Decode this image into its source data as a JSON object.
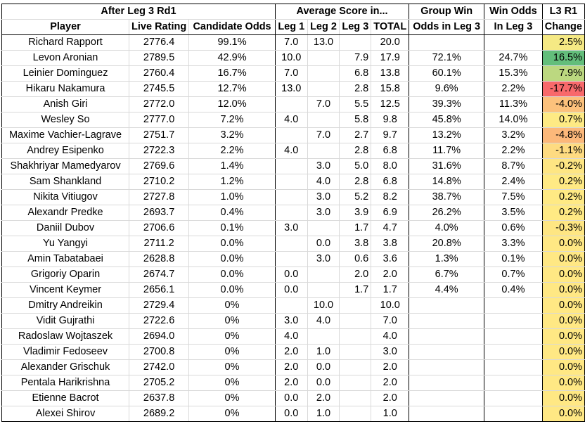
{
  "header": {
    "group1": "After Leg 3 Rd1",
    "avg": "Average Score in...",
    "group_win_1": "Group Win",
    "win_odds_1": "Win Odds",
    "l3r1": "L3 R1",
    "cols": [
      "Player",
      "Live Rating",
      "Candidate Odds",
      "Leg 1",
      "Leg 2",
      "Leg 3",
      "TOTAL",
      "Odds in Leg 3",
      "In Leg 3",
      "Change"
    ]
  },
  "rows": [
    {
      "player": "Richard Rapport",
      "rating": "2776.4",
      "cand": "99.1%",
      "leg1": "7.0",
      "leg2": "13.0",
      "leg3": "",
      "total": "20.0",
      "gwin": "",
      "wodds": "",
      "change": "2.5%",
      "bg": "#f5e984"
    },
    {
      "player": "Levon Aronian",
      "rating": "2789.5",
      "cand": "42.9%",
      "leg1": "10.0",
      "leg2": "",
      "leg3": "7.9",
      "total": "17.9",
      "gwin": "72.1%",
      "wodds": "24.7%",
      "change": "16.5%",
      "bg": "#63be7b"
    },
    {
      "player": "Leinier Dominguez",
      "rating": "2760.4",
      "cand": "16.7%",
      "leg1": "7.0",
      "leg2": "",
      "leg3": "6.8",
      "total": "13.8",
      "gwin": "60.1%",
      "wodds": "15.3%",
      "change": "7.9%",
      "bg": "#bcd880"
    },
    {
      "player": "Hikaru Nakamura",
      "rating": "2745.5",
      "cand": "12.7%",
      "leg1": "13.0",
      "leg2": "",
      "leg3": "2.8",
      "total": "15.8",
      "gwin": "9.6%",
      "wodds": "2.2%",
      "change": "-17.7%",
      "bg": "#f8696b"
    },
    {
      "player": "Anish Giri",
      "rating": "2772.0",
      "cand": "12.0%",
      "leg1": "",
      "leg2": "7.0",
      "leg3": "5.5",
      "total": "12.5",
      "gwin": "39.3%",
      "wodds": "11.3%",
      "change": "-4.0%",
      "bg": "#fcc17c"
    },
    {
      "player": "Wesley So",
      "rating": "2777.0",
      "cand": "7.2%",
      "leg1": "4.0",
      "leg2": "",
      "leg3": "5.8",
      "total": "9.8",
      "gwin": "45.8%",
      "wodds": "14.0%",
      "change": "0.7%",
      "bg": "#feea84"
    },
    {
      "player": "Maxime Vachier-Lagrave",
      "rating": "2751.7",
      "cand": "3.2%",
      "leg1": "",
      "leg2": "7.0",
      "leg3": "2.7",
      "total": "9.7",
      "gwin": "13.2%",
      "wodds": "3.2%",
      "change": "-4.8%",
      "bg": "#fcb87a"
    },
    {
      "player": "Andrey Esipenko",
      "rating": "2722.3",
      "cand": "2.2%",
      "leg1": "4.0",
      "leg2": "",
      "leg3": "2.8",
      "total": "6.8",
      "gwin": "11.7%",
      "wodds": "2.2%",
      "change": "-1.1%",
      "bg": "#fedb81"
    },
    {
      "player": "Shakhriyar Mamedyarov",
      "rating": "2769.6",
      "cand": "1.4%",
      "leg1": "",
      "leg2": "3.0",
      "leg3": "5.0",
      "total": "8.0",
      "gwin": "31.6%",
      "wodds": "8.7%",
      "change": "-0.2%",
      "bg": "#fee683"
    },
    {
      "player": "Sam Shankland",
      "rating": "2710.2",
      "cand": "1.2%",
      "leg1": "",
      "leg2": "4.0",
      "leg3": "2.8",
      "total": "6.8",
      "gwin": "14.8%",
      "wodds": "2.4%",
      "change": "0.2%",
      "bg": "#ffea84"
    },
    {
      "player": "Nikita Vitiugov",
      "rating": "2727.8",
      "cand": "1.0%",
      "leg1": "",
      "leg2": "3.0",
      "leg3": "5.2",
      "total": "8.2",
      "gwin": "38.7%",
      "wodds": "7.5%",
      "change": "0.2%",
      "bg": "#ffea84"
    },
    {
      "player": "Alexandr Predke",
      "rating": "2693.7",
      "cand": "0.4%",
      "leg1": "",
      "leg2": "3.0",
      "leg3": "3.9",
      "total": "6.9",
      "gwin": "26.2%",
      "wodds": "3.5%",
      "change": "0.2%",
      "bg": "#ffea84"
    },
    {
      "player": "Daniil Dubov",
      "rating": "2706.6",
      "cand": "0.1%",
      "leg1": "3.0",
      "leg2": "",
      "leg3": "1.7",
      "total": "4.7",
      "gwin": "4.0%",
      "wodds": "0.6%",
      "change": "-0.3%",
      "bg": "#fee683"
    },
    {
      "player": "Yu Yangyi",
      "rating": "2711.2",
      "cand": "0.0%",
      "leg1": "",
      "leg2": "0.0",
      "leg3": "3.8",
      "total": "3.8",
      "gwin": "20.8%",
      "wodds": "3.3%",
      "change": "0.0%",
      "bg": "#ffe884"
    },
    {
      "player": "Amin Tabatabaei",
      "rating": "2628.8",
      "cand": "0.0%",
      "leg1": "",
      "leg2": "3.0",
      "leg3": "0.6",
      "total": "3.6",
      "gwin": "1.3%",
      "wodds": "0.1%",
      "change": "0.0%",
      "bg": "#ffe884"
    },
    {
      "player": "Grigoriy Oparin",
      "rating": "2674.7",
      "cand": "0.0%",
      "leg1": "0.0",
      "leg2": "",
      "leg3": "2.0",
      "total": "2.0",
      "gwin": "6.7%",
      "wodds": "0.7%",
      "change": "0.0%",
      "bg": "#ffe884"
    },
    {
      "player": "Vincent Keymer",
      "rating": "2656.1",
      "cand": "0.0%",
      "leg1": "0.0",
      "leg2": "",
      "leg3": "1.7",
      "total": "1.7",
      "gwin": "4.4%",
      "wodds": "0.4%",
      "change": "0.0%",
      "bg": "#ffe884"
    },
    {
      "player": "Dmitry Andreikin",
      "rating": "2729.4",
      "cand": "0%",
      "leg1": "",
      "leg2": "10.0",
      "leg3": "",
      "total": "10.0",
      "gwin": "",
      "wodds": "",
      "change": "0.0%",
      "bg": "#ffe884"
    },
    {
      "player": "Vidit Gujrathi",
      "rating": "2722.6",
      "cand": "0%",
      "leg1": "3.0",
      "leg2": "4.0",
      "leg3": "",
      "total": "7.0",
      "gwin": "",
      "wodds": "",
      "change": "0.0%",
      "bg": "#ffe884"
    },
    {
      "player": "Radoslaw Wojtaszek",
      "rating": "2694.0",
      "cand": "0%",
      "leg1": "4.0",
      "leg2": "",
      "leg3": "",
      "total": "4.0",
      "gwin": "",
      "wodds": "",
      "change": "0.0%",
      "bg": "#ffe884"
    },
    {
      "player": "Vladimir Fedoseev",
      "rating": "2700.8",
      "cand": "0%",
      "leg1": "2.0",
      "leg2": "1.0",
      "leg3": "",
      "total": "3.0",
      "gwin": "",
      "wodds": "",
      "change": "0.0%",
      "bg": "#ffe884"
    },
    {
      "player": "Alexander Grischuk",
      "rating": "2742.0",
      "cand": "0%",
      "leg1": "2.0",
      "leg2": "0.0",
      "leg3": "",
      "total": "2.0",
      "gwin": "",
      "wodds": "",
      "change": "0.0%",
      "bg": "#ffe884"
    },
    {
      "player": "Pentala Harikrishna",
      "rating": "2705.2",
      "cand": "0%",
      "leg1": "2.0",
      "leg2": "0.0",
      "leg3": "",
      "total": "2.0",
      "gwin": "",
      "wodds": "",
      "change": "0.0%",
      "bg": "#ffe884"
    },
    {
      "player": "Etienne Bacrot",
      "rating": "2637.8",
      "cand": "0%",
      "leg1": "0.0",
      "leg2": "2.0",
      "leg3": "",
      "total": "2.0",
      "gwin": "",
      "wodds": "",
      "change": "0.0%",
      "bg": "#ffe884"
    },
    {
      "player": "Alexei Shirov",
      "rating": "2689.2",
      "cand": "0%",
      "leg1": "0.0",
      "leg2": "1.0",
      "leg3": "",
      "total": "1.0",
      "gwin": "",
      "wodds": "",
      "change": "0.0%",
      "bg": "#ffe884"
    }
  ]
}
